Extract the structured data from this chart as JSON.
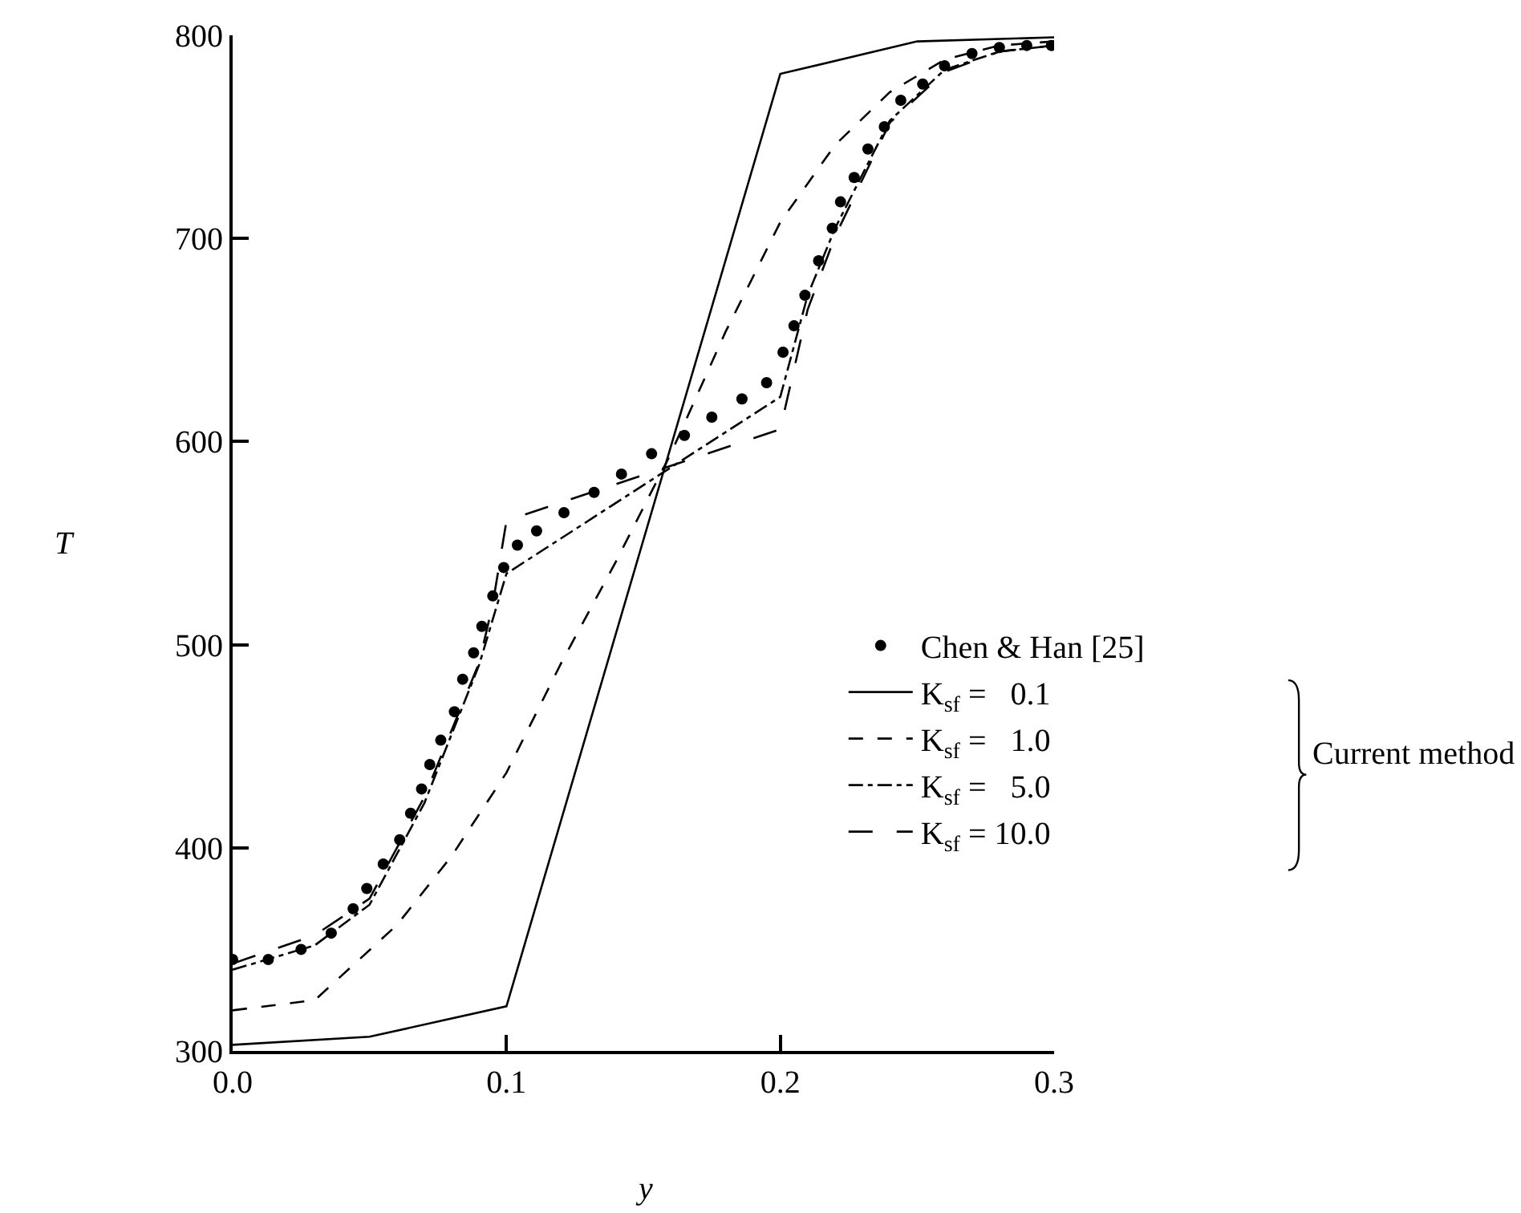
{
  "chart_data": {
    "type": "line",
    "xlabel": "y",
    "ylabel": "T",
    "xlim": [
      0,
      0.3
    ],
    "ylim": [
      300,
      800
    ],
    "xticks": [
      {
        "value": 0,
        "label": "0.0"
      },
      {
        "value": 0.1,
        "label": "0.1"
      },
      {
        "value": 0.2,
        "label": "0.2"
      },
      {
        "value": 0.3,
        "label": "0.3"
      }
    ],
    "yticks": [
      300,
      400,
      500,
      600,
      700,
      800
    ],
    "legend": "right",
    "annotations": [
      "Current method"
    ],
    "series": [
      {
        "name": "Chen & Han [25]",
        "type": "scatter",
        "marker": "circle",
        "color": "#000000",
        "x": [
          0,
          0.013,
          0.025,
          0.036,
          0.044,
          0.049,
          0.055,
          0.061,
          0.065,
          0.069,
          0.072,
          0.076,
          0.081,
          0.084,
          0.088,
          0.091,
          0.095,
          0.099,
          0.104,
          0.111,
          0.121,
          0.132,
          0.142,
          0.153,
          0.165,
          0.175,
          0.186,
          0.195,
          0.201,
          0.205,
          0.209,
          0.214,
          0.219,
          0.222,
          0.227,
          0.232,
          0.238,
          0.244,
          0.252,
          0.26,
          0.27,
          0.28,
          0.29,
          0.299
        ],
        "values": [
          345,
          345,
          350,
          358,
          370,
          380,
          392,
          404,
          417,
          429,
          441,
          453,
          467,
          483,
          496,
          509,
          524,
          538,
          549,
          556,
          565,
          575,
          584,
          594,
          603,
          612,
          621,
          629,
          644,
          657,
          672,
          689,
          705,
          718,
          730,
          744,
          755,
          768,
          776,
          785,
          791,
          794,
          795,
          795
        ]
      },
      {
        "name": "K$_{sf}$ =   0.1",
        "line_style": "solid",
        "color": "#000000",
        "x": [
          0,
          0.05,
          0.1,
          0.2,
          0.25,
          0.3
        ],
        "values": [
          303,
          307,
          322,
          781,
          797,
          799
        ]
      },
      {
        "name": "K$_{sf}$ =   1.0",
        "line_style": "dotted",
        "color": "#000000",
        "x": [
          0,
          0.03,
          0.06,
          0.08,
          0.1,
          0.12,
          0.14,
          0.16,
          0.18,
          0.2,
          0.22,
          0.24,
          0.26,
          0.28,
          0.3
        ],
        "values": [
          320,
          325,
          362,
          396,
          437,
          491,
          541,
          594,
          654,
          708,
          746,
          772,
          788,
          795,
          797
        ]
      },
      {
        "name": "K$_{sf}$ =   5.0",
        "line_style": "dashdot",
        "color": "#000000",
        "x": [
          0,
          0.03,
          0.05,
          0.07,
          0.09,
          0.1,
          0.2,
          0.21,
          0.22,
          0.24,
          0.26,
          0.28,
          0.3
        ],
        "values": [
          340,
          352,
          372,
          422,
          490,
          535,
          622,
          672,
          705,
          758,
          783,
          792,
          795
        ]
      },
      {
        "name": "K$_{sf}$ = 10.0",
        "line_style": "dashed",
        "color": "#000000",
        "x": [
          0,
          0.03,
          0.05,
          0.07,
          0.09,
          0.095,
          0.1,
          0.2,
          0.21,
          0.22,
          0.24,
          0.26,
          0.28,
          0.3
        ],
        "values": [
          343,
          357,
          375,
          425,
          491,
          520,
          561,
          606,
          665,
          701,
          757,
          782,
          792,
          795
        ]
      }
    ]
  }
}
